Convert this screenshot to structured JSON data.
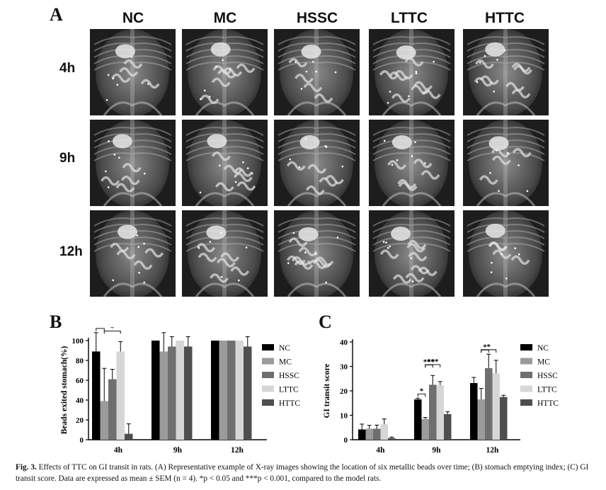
{
  "panelA": {
    "letter": "A",
    "columns": [
      "NC",
      "MC",
      "HSSC",
      "LTTC",
      "HTTC"
    ],
    "rows": [
      "4h",
      "9h",
      "12h"
    ]
  },
  "panelB": {
    "letter": "B"
  },
  "panelC": {
    "letter": "C"
  },
  "chart_data": [
    {
      "type": "bar",
      "ylabel": "Beads exited stomach(%)",
      "xlabel": "",
      "categories": [
        "4h",
        "9h",
        "12h"
      ],
      "ylim": [
        0,
        100
      ],
      "yticks": [
        0,
        20,
        40,
        60,
        80,
        100
      ],
      "series": [
        {
          "name": "NC",
          "color": "#000000",
          "values": [
            89,
            100,
            100
          ],
          "errors": [
            19,
            0,
            0
          ]
        },
        {
          "name": "MC",
          "color": "#9b9b9b",
          "values": [
            39,
            89,
            100
          ],
          "errors": [
            33,
            19,
            0
          ]
        },
        {
          "name": "HSSC",
          "color": "#6f6f6f",
          "values": [
            61,
            94,
            100
          ],
          "errors": [
            10,
            10,
            0
          ]
        },
        {
          "name": "LTTC",
          "color": "#d6d6d6",
          "values": [
            89,
            100,
            100
          ],
          "errors": [
            10,
            0,
            0
          ]
        },
        {
          "name": "HTTC",
          "color": "#4e4e4e",
          "values": [
            6,
            94,
            94
          ],
          "errors": [
            10,
            10,
            10
          ]
        }
      ],
      "annotations": [
        {
          "label": "*",
          "category": "4h",
          "from": "NC",
          "to": "MC"
        },
        {
          "label": "*",
          "category": "4h",
          "from": "MC",
          "to": "LTTC"
        }
      ],
      "legend": "right"
    },
    {
      "type": "bar",
      "ylabel": "GI transit score",
      "xlabel": "",
      "categories": [
        "4h",
        "9h",
        "12h"
      ],
      "ylim": [
        0,
        40
      ],
      "yticks": [
        0,
        10,
        20,
        30,
        40
      ],
      "series": [
        {
          "name": "NC",
          "color": "#000000",
          "values": [
            4.2,
            16.5,
            23.2
          ],
          "errors": [
            2.2,
            0.5,
            2.3
          ]
        },
        {
          "name": "MC",
          "color": "#9b9b9b",
          "values": [
            4.5,
            8.5,
            16.5
          ],
          "errors": [
            1.4,
            0.6,
            4.5
          ]
        },
        {
          "name": "HSSC",
          "color": "#6f6f6f",
          "values": [
            4.5,
            22.5,
            29.3
          ],
          "errors": [
            1.5,
            3.8,
            5.7
          ]
        },
        {
          "name": "LTTC",
          "color": "#d6d6d6",
          "values": [
            6.3,
            22.3,
            27.2
          ],
          "errors": [
            2.2,
            1.5,
            5.3
          ]
        },
        {
          "name": "HTTC",
          "color": "#4e4e4e",
          "values": [
            0.7,
            10.5,
            17.5
          ],
          "errors": [
            0.4,
            1.0,
            0.7
          ]
        }
      ],
      "annotations": [
        {
          "label": "*",
          "category": "9h",
          "from": "NC",
          "to": "MC"
        },
        {
          "label": "***",
          "category": "9h",
          "from": "MC",
          "to": "HSSC"
        },
        {
          "label": "***",
          "category": "9h",
          "from": "MC",
          "to": "LTTC"
        },
        {
          "label": "*",
          "category": "12h",
          "from": "MC",
          "to": "HSSC"
        },
        {
          "label": "*",
          "category": "12h",
          "from": "MC",
          "to": "LTTC"
        }
      ],
      "legend": "right"
    }
  ],
  "caption": {
    "label": "Fig. 3.",
    "text": "Effects of TTC on GI transit in rats. (A) Representative example of X-ray images showing the location of six metallic beads over time; (B) stomach emptying index; (C) GI transit score. Data are expressed as mean ± SEM (n = 4). *p < 0.05 and ***p < 0.001, compared to the model rats."
  }
}
